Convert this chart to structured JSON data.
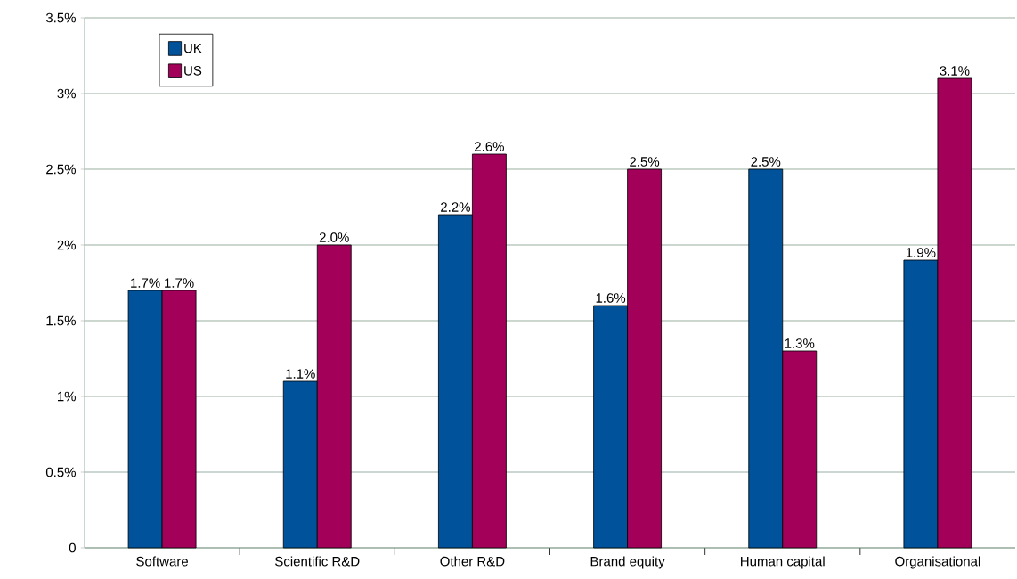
{
  "chart_data": {
    "type": "bar",
    "categories": [
      "Software",
      "Scientific R&D",
      "Other R&D",
      "Brand equity",
      "Human capital",
      "Organisational"
    ],
    "series": [
      {
        "name": "UK",
        "color": "#00529b",
        "values": [
          1.7,
          1.1,
          2.2,
          1.6,
          2.5,
          1.9
        ],
        "value_labels": [
          "1.7%",
          "1.1%",
          "2.2%",
          "1.6%",
          "2.5%",
          "1.9%"
        ]
      },
      {
        "name": "US",
        "color": "#a3005a",
        "values": [
          1.7,
          2.0,
          2.6,
          2.5,
          1.3,
          3.1
        ],
        "value_labels": [
          "1.7%",
          "2.0%",
          "2.6%",
          "2.5%",
          "1.3%",
          "3.1%"
        ]
      }
    ],
    "ylim": [
      0,
      3.5
    ],
    "yticks": [
      0,
      {
        "value": 0.5,
        "label": "0.5%"
      },
      {
        "value": 1,
        "label": "1%"
      },
      {
        "value": 1.5,
        "label": "1.5%"
      },
      {
        "value": 2,
        "label": "2%"
      },
      {
        "value": 2.5,
        "label": "2.5%"
      },
      {
        "value": 3,
        "label": "3%"
      },
      {
        "value": 3.5,
        "label": "3.5%"
      }
    ],
    "grid": "y",
    "legend": "top left"
  }
}
